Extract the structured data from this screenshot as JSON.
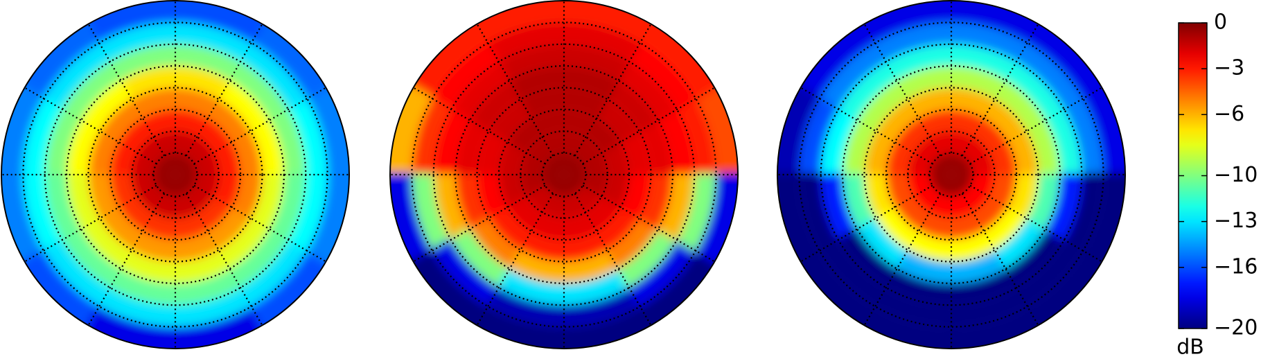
{
  "chart_data": {
    "type": "polar_heatmap",
    "colormap": "jet",
    "clim": [
      -20,
      0
    ],
    "cticks": [
      0,
      {
        "value": -3,
        "label": "−3"
      },
      {
        "value": -6,
        "label": "−6"
      },
      {
        "value": -10,
        "label": "−10"
      },
      {
        "value": -13,
        "label": "−13"
      },
      {
        "value": -16,
        "label": "−16"
      },
      {
        "value": -20,
        "label": "−20"
      }
    ],
    "colorbar_label": "dB",
    "grid": true,
    "panels": [
      {
        "values": [
          [
            -0.5,
            -0.5,
            -0.5,
            -0.5,
            -0.5,
            -0.5,
            -0.5,
            -0.5,
            -0.5,
            -0.5,
            -0.5,
            -0.5
          ],
          [
            -1.5,
            -1.5,
            -1.5,
            -1.5,
            -1.5,
            -1.5,
            -1.5,
            -1.5,
            -1.5,
            -1.5,
            -1.5,
            -1.5
          ],
          [
            -3,
            -3,
            -3,
            -3,
            -3,
            -3,
            -3.5,
            -3.5,
            -3.5,
            -3.5,
            -3.5,
            -3
          ],
          [
            -5,
            -5,
            -5,
            -5,
            -5,
            -5,
            -5.5,
            -5.5,
            -5.5,
            -5.5,
            -5.5,
            -5
          ],
          [
            -7.5,
            -7.5,
            -7,
            -7,
            -7.5,
            -7.5,
            -8,
            -8,
            -8,
            -8,
            -8,
            -8
          ],
          [
            -10,
            -10,
            -10,
            -10,
            -10,
            -10,
            -10.5,
            -10.5,
            -10.5,
            -10.5,
            -10.5,
            -10.5
          ],
          [
            -12.5,
            -13,
            -13,
            -13,
            -13,
            -12.5,
            -12.5,
            -13,
            -13,
            -13,
            -13,
            -12.5
          ],
          [
            -15,
            -15.5,
            -16,
            -16,
            -15.5,
            -15,
            -15,
            -16,
            -18,
            -18,
            -16,
            -15
          ]
        ]
      },
      {
        "values": [
          [
            -0.5,
            -0.5,
            -0.5,
            -0.5,
            -0.5,
            -0.5,
            -0.5,
            -0.5,
            -0.5,
            -0.5,
            -0.5,
            -0.5
          ],
          [
            -1,
            -1,
            -1,
            -1,
            -1,
            -1,
            -1,
            -1.5,
            -1.5,
            -1.5,
            -1.5,
            -1
          ],
          [
            -1.5,
            -1,
            -1,
            -1,
            -1,
            -1.5,
            -1.5,
            -2,
            -2,
            -2,
            -2,
            -1.5
          ],
          [
            -2,
            -1.5,
            -1,
            -1,
            -1.5,
            -2,
            -2.5,
            -3,
            -3,
            -3,
            -3,
            -2.5
          ],
          [
            -2,
            -1.5,
            -1,
            -1,
            -1.5,
            -2,
            -3.5,
            -5,
            -6,
            -6,
            -5,
            -3.5
          ],
          [
            -2.5,
            -2,
            -1.5,
            -1.5,
            -2,
            -2.5,
            -6,
            -10,
            -13,
            -13,
            -10,
            -6
          ],
          [
            -3,
            -2.5,
            -2,
            -2,
            -2.5,
            -3.5,
            -10,
            -18,
            -19,
            -19,
            -18,
            -10
          ],
          [
            -4,
            -3,
            -3,
            -3,
            -3,
            -6,
            -18,
            -20,
            -20,
            -20,
            -20,
            -18
          ]
        ]
      },
      {
        "values": [
          [
            -0.5,
            -0.5,
            -0.5,
            -0.5,
            -0.5,
            -0.5,
            -0.5,
            -0.5,
            -0.5,
            -0.5,
            -0.5,
            -0.5
          ],
          [
            -2,
            -2,
            -2,
            -2,
            -2,
            -2,
            -2.5,
            -2.5,
            -2.5,
            -2.5,
            -2.5,
            -2.5
          ],
          [
            -3.5,
            -3.5,
            -3.5,
            -3.5,
            -3.5,
            -3.5,
            -4,
            -4,
            -4,
            -4,
            -4,
            -4
          ],
          [
            -6,
            -6,
            -6,
            -6,
            -6,
            -6,
            -7,
            -7.5,
            -7.5,
            -7.5,
            -7.5,
            -7
          ],
          [
            -9,
            -9,
            -9,
            -9,
            -9,
            -9,
            -11,
            -13,
            -14,
            -14,
            -13,
            -11
          ],
          [
            -12,
            -12,
            -12,
            -12,
            -12,
            -12.5,
            -17,
            -20,
            -20,
            -20,
            -20,
            -17
          ],
          [
            -15,
            -15,
            -15,
            -15,
            -15,
            -16,
            -20,
            -20,
            -20,
            -20,
            -20,
            -20
          ],
          [
            -18,
            -18,
            -18,
            -18,
            -18,
            -19,
            -20,
            -20,
            -20,
            -20,
            -20,
            -20
          ]
        ]
      }
    ]
  }
}
